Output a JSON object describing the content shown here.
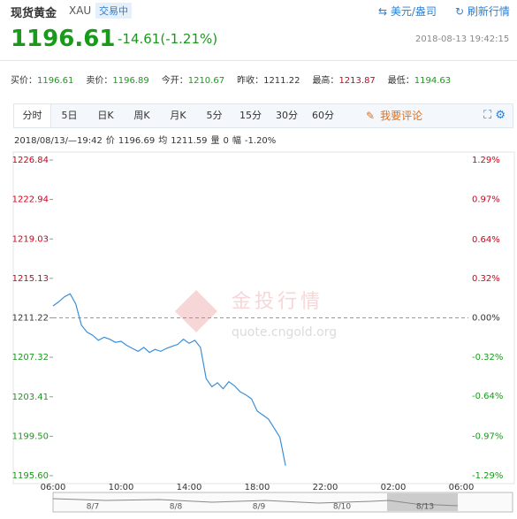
{
  "header": {
    "name": "现货黄金",
    "code": "XAU",
    "status": "交易中",
    "unit": "美元/盎司",
    "refresh": "刷新行情",
    "price": "1196.61",
    "change": "-14.61(-1.21%)",
    "time": "2018-08-13 19:42:15"
  },
  "quotes": [
    {
      "label": "买价：",
      "value": "1196.61",
      "color": "#1a9a1a"
    },
    {
      "label": "卖价：",
      "value": "1196.89",
      "color": "#1a9a1a"
    },
    {
      "label": "今开：",
      "value": "1210.67",
      "color": "#1a9a1a"
    },
    {
      "label": "昨收：",
      "value": "1211.22",
      "color": "#333333"
    },
    {
      "label": "最高：",
      "value": "1213.87",
      "color": "#d0021b"
    },
    {
      "label": "最低：",
      "value": "1194.63",
      "color": "#1a9a1a"
    }
  ],
  "tabs": [
    "分时",
    "5日",
    "日K",
    "周K",
    "月K",
    "5分",
    "15分",
    "30分",
    "60分"
  ],
  "comment": "我要评论",
  "info": [
    "2018/08/13/—19:42",
    "价",
    "1196.69",
    "均",
    "1211.59",
    "量",
    "0",
    "幅",
    "-1.20%"
  ],
  "watermark": {
    "brand": "金投行情",
    "url": "quote.cngold.org"
  },
  "navigator": [
    "8/7",
    "8/8",
    "8/9",
    "8/10",
    "8/13"
  ],
  "chart_data": {
    "type": "line",
    "color": "#3a8fd8",
    "categories": [
      "06:00",
      null,
      null,
      null,
      null,
      null,
      null,
      null,
      null,
      null,
      null,
      null,
      "10:00",
      null,
      null,
      null,
      null,
      null,
      null,
      null,
      null,
      null,
      null,
      null,
      "14:00",
      null,
      null,
      null,
      null,
      null,
      null,
      null,
      null,
      null,
      null,
      null,
      "18:00",
      null,
      null,
      null,
      null,
      null,
      null,
      null,
      null,
      null,
      null,
      null,
      "22:00",
      null,
      null,
      null,
      null,
      null,
      null,
      null,
      null,
      null,
      null,
      null,
      "02:00",
      null,
      null,
      null,
      null,
      null,
      null,
      null,
      null,
      null,
      null,
      null,
      "06:00"
    ],
    "values": [
      1212.4,
      1212.8,
      1213.3,
      1213.6,
      1212.6,
      1210.5,
      1209.8,
      1209.5,
      1209.0,
      1209.3,
      1209.1,
      1208.8,
      1208.9,
      1208.5,
      1208.2,
      1207.9,
      1208.3,
      1207.8,
      1208.1,
      1207.9,
      1208.2,
      1208.4,
      1208.6,
      1209.1,
      1208.7,
      1209.0,
      1208.3,
      1205.2,
      1204.4,
      1204.8,
      1204.2,
      1204.9,
      1204.5,
      1203.9,
      1203.6,
      1203.2,
      1202.0,
      1201.6,
      1201.2,
      1200.3,
      1199.4,
      1196.6,
      null,
      null,
      null,
      null,
      null,
      null,
      null,
      null,
      null,
      null,
      null,
      null,
      null,
      null,
      null,
      null,
      null,
      null,
      null,
      null,
      null,
      null,
      null,
      null,
      null,
      null,
      null,
      null,
      null,
      null,
      null
    ],
    "ylim": [
      1195.6,
      1226.84
    ],
    "yticks": [
      1226.84,
      1222.94,
      1219.03,
      1215.13,
      1211.22,
      1207.32,
      1203.41,
      {
        "value": 1199.5,
        "label": "1199.50"
      },
      {
        "value": 1195.6,
        "label": "1195.60"
      }
    ],
    "y2lim": [
      -1.29,
      1.29
    ],
    "y2ticks": [
      {
        "value": 1.29,
        "label": "1.29%"
      },
      {
        "value": 0.97,
        "label": "0.97%"
      },
      {
        "value": 0.64,
        "label": "0.64%"
      },
      {
        "value": 0.32,
        "label": "0.32%"
      },
      {
        "value": 0,
        "label": "0.00%"
      },
      {
        "value": -0.32,
        "label": "-0.32%"
      },
      {
        "value": -0.64,
        "label": "-0.64%"
      },
      {
        "value": -0.97,
        "label": "-0.97%"
      },
      {
        "value": -1.29,
        "label": "-1.29%"
      }
    ]
  }
}
